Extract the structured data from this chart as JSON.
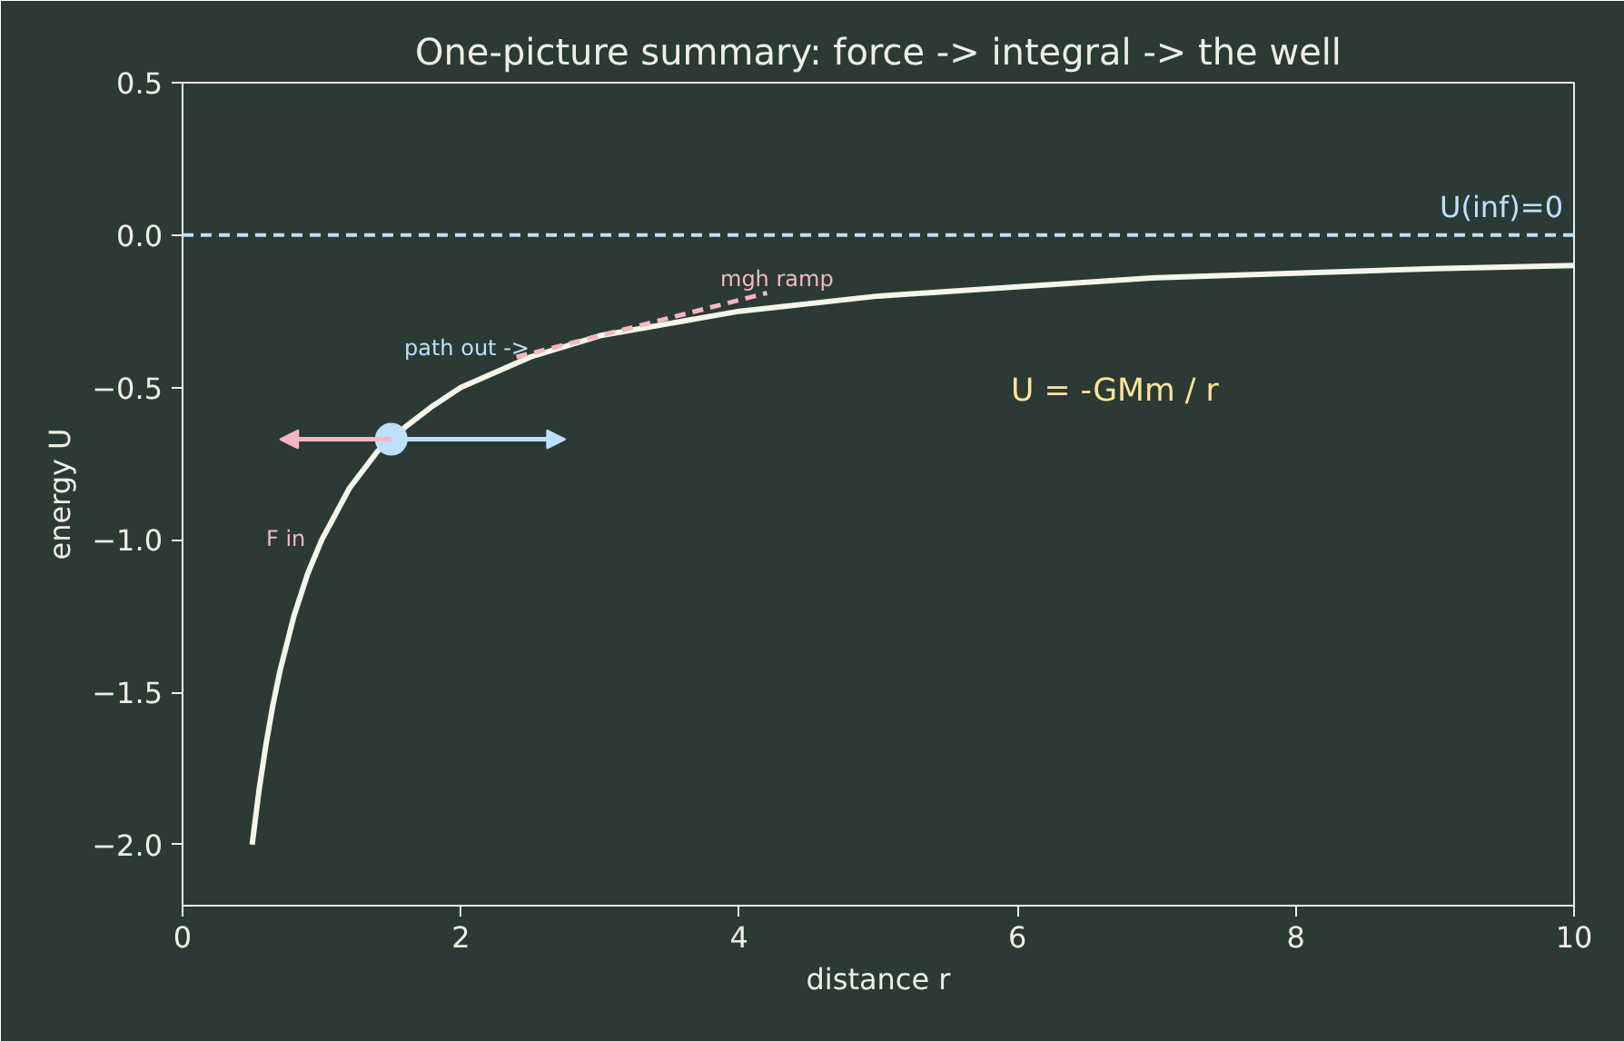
{
  "chart_data": {
    "type": "line",
    "title": "One-picture summary: force -> integral -> the well",
    "xlabel": "distance r",
    "ylabel": "energy U",
    "xlim": [
      0,
      10
    ],
    "ylim": [
      -2.2,
      0.5
    ],
    "xticks": [
      0,
      2,
      4,
      6,
      8,
      10
    ],
    "yticks": [
      {
        "value": 0.5,
        "label": "0.5"
      },
      {
        "value": 0,
        "label": "0.0"
      },
      {
        "value": -0.5,
        "label": "−0.5"
      },
      {
        "value": -1,
        "label": "−1.0"
      },
      {
        "value": -1.5,
        "label": "−1.5"
      },
      {
        "value": -2,
        "label": "−2.0"
      }
    ],
    "grid": false,
    "series": [
      {
        "color": "#f5f5ea",
        "line_style": "solid",
        "x": [
          0.5,
          0.55,
          0.6,
          0.65,
          0.7,
          0.8,
          0.9,
          1.0,
          1.2,
          1.4,
          1.6,
          1.8,
          2.0,
          2.5,
          3.0,
          3.5,
          4.0,
          5.0,
          6.0,
          7.0,
          8.0,
          9.0,
          10.0
        ],
        "values": [
          -2.0,
          -1.82,
          -1.67,
          -1.54,
          -1.43,
          -1.25,
          -1.11,
          -1.0,
          -0.83,
          -0.71,
          -0.63,
          -0.56,
          -0.5,
          -0.4,
          -0.33,
          -0.29,
          -0.25,
          -0.2,
          -0.17,
          -0.14,
          -0.125,
          -0.11,
          -0.1
        ]
      },
      {
        "color": "#f4b6c2",
        "line_style": "dashed",
        "x": [
          2.4,
          4.2
        ],
        "values": [
          -0.4,
          -0.19
        ]
      },
      {
        "type": "scatter",
        "color": "#bde0fe",
        "marker": "circle",
        "x": [
          1.5
        ],
        "values": [
          -0.67
        ]
      }
    ],
    "ref_lines": [
      {
        "axis": "y",
        "value": 0,
        "label": "U(inf)=0",
        "color": "#bde0fe",
        "line_style": "dashed"
      }
    ],
    "annotations": [
      "U = -GMm / r",
      "path out ->",
      "mgh ramp",
      "F in"
    ]
  }
}
